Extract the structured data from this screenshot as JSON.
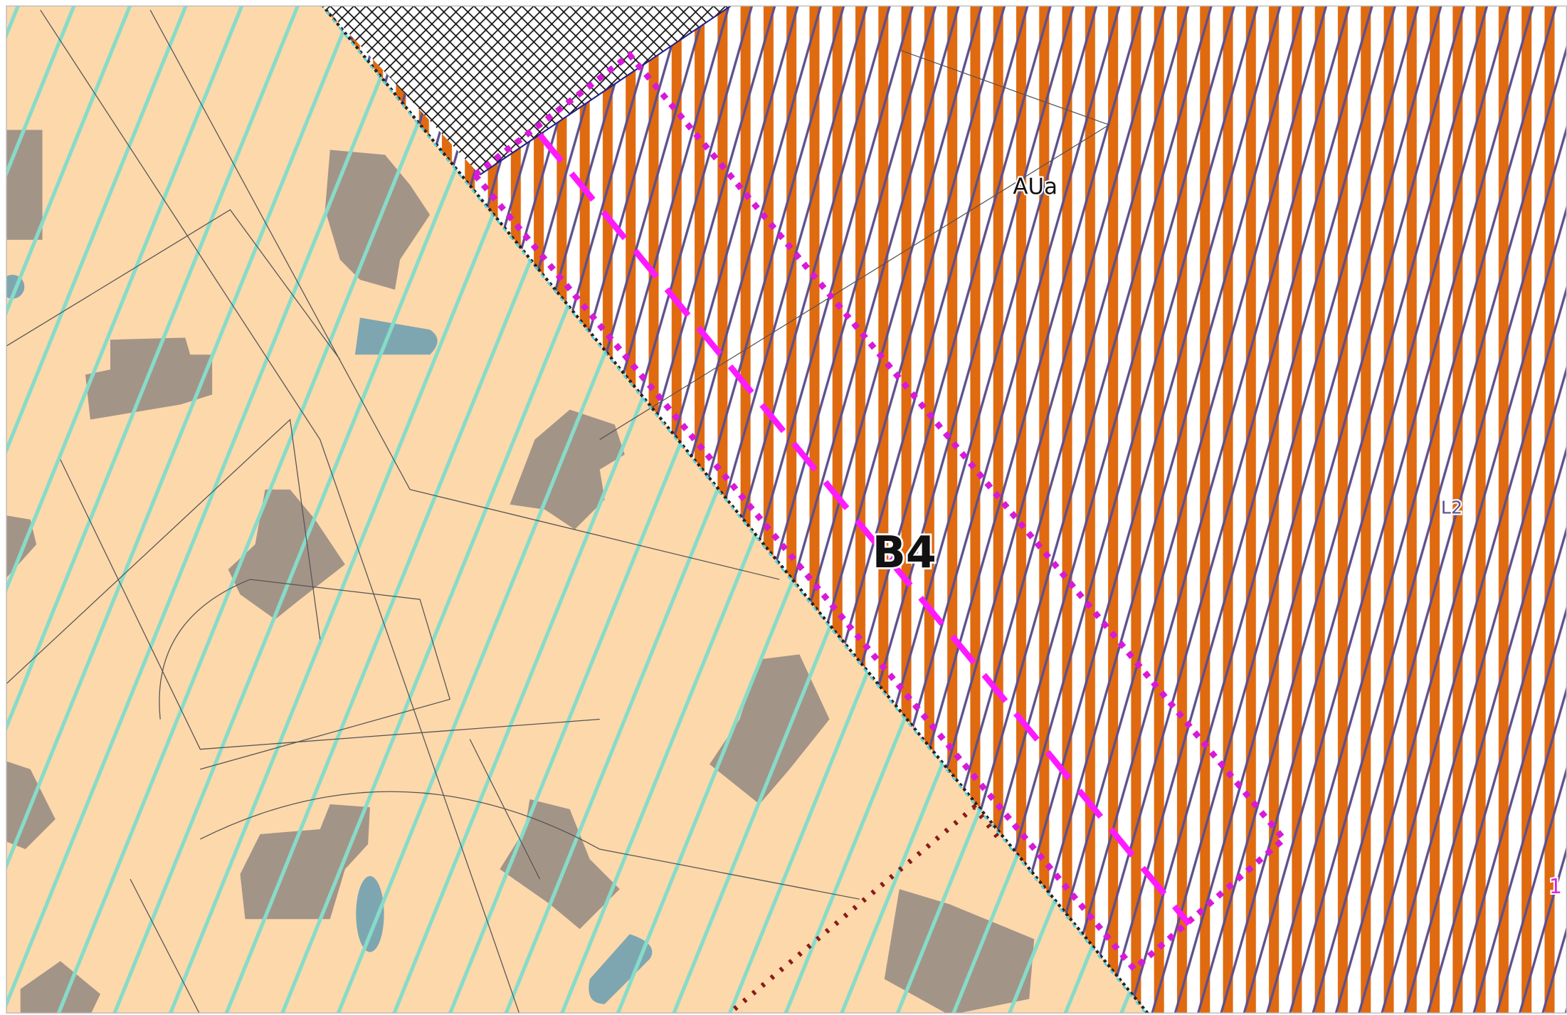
{
  "map_labels": {
    "zone_north": "AUa",
    "sector": "B4",
    "zone_east": "L2",
    "marker": "1"
  }
}
